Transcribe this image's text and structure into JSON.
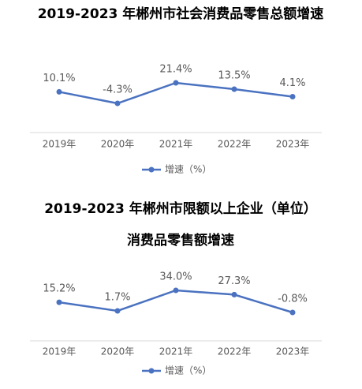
{
  "chart_data": [
    {
      "type": "line",
      "title": "2019-2023 年郴州市社会消费品零售总额增速",
      "categories": [
        "2019年",
        "2020年",
        "2021年",
        "2022年",
        "2023年"
      ],
      "series": [
        {
          "name": "增速（%）",
          "color": "#4a72c0",
          "values": [
            10.1,
            -4.3,
            21.4,
            13.5,
            4.1
          ],
          "value_labels": [
            "10.1%",
            "-4.3%",
            "21.4%",
            "13.5%",
            "4.1%"
          ]
        }
      ]
    },
    {
      "type": "line",
      "title": [
        "2019-2023 年郴州市限额以上企业（单位）",
        "消费品零售额增速"
      ],
      "categories": [
        "2019年",
        "2020年",
        "2021年",
        "2022年",
        "2023年"
      ],
      "series": [
        {
          "name": "增速（%）",
          "color": "#4a72c0",
          "values": [
            15.2,
            1.7,
            34.0,
            27.3,
            -0.8
          ],
          "value_labels": [
            "15.2%",
            "1.7%",
            "34.0%",
            "27.3%",
            "-0.8%"
          ]
        }
      ]
    }
  ]
}
